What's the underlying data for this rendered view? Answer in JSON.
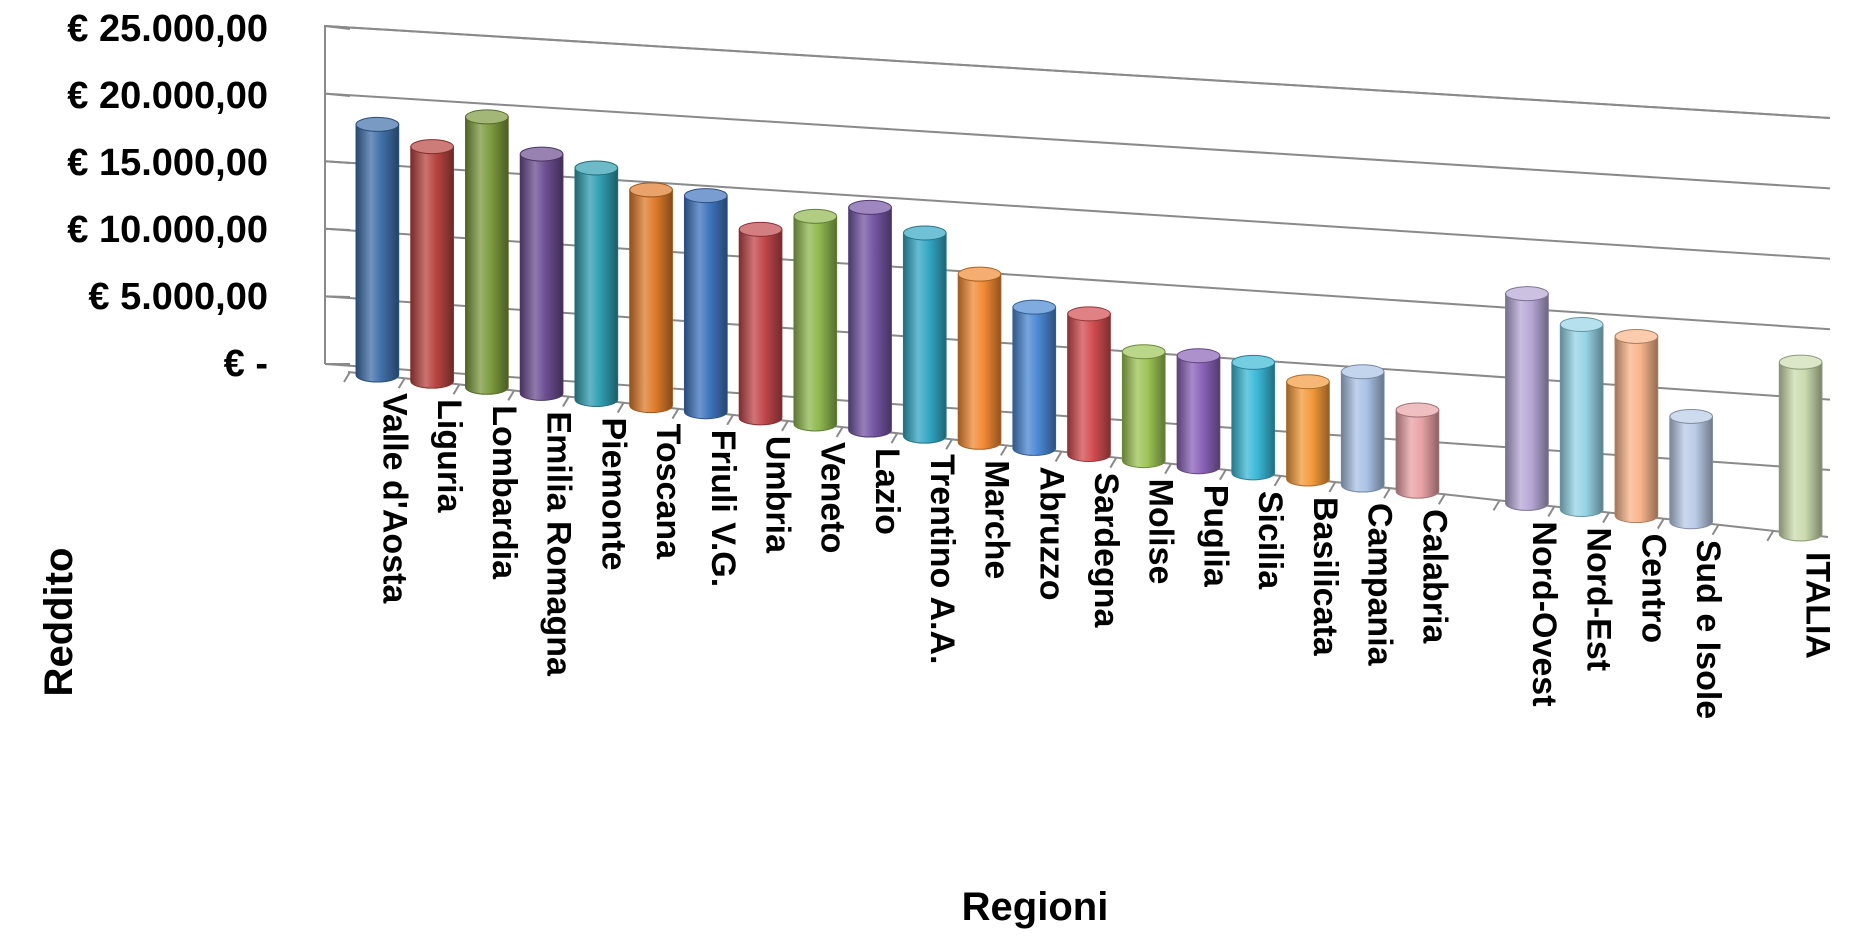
{
  "chart_data": {
    "type": "bar",
    "style": "3d-cylinder",
    "xlabel": "Regioni",
    "ylabel": "Reddito",
    "ylim": [
      0,
      25000
    ],
    "yticks": [
      {
        "value": 25000,
        "label": "€ 25.000,00"
      },
      {
        "value": 20000,
        "label": "€ 20.000,00"
      },
      {
        "value": 15000,
        "label": "€ 15.000,00"
      },
      {
        "value": 10000,
        "label": "€ 10.000,00"
      },
      {
        "value": 5000,
        "label": "€ 5.000,00"
      },
      {
        "value": 0,
        "label": "€ -"
      }
    ],
    "grid": true,
    "legend": "none",
    "categories": [
      "Valle d'Aosta",
      "Liguria",
      "Lombardia",
      "Emilia Romagna",
      "Piemonte",
      "Toscana",
      "Friuli V.G.",
      "Umbria",
      "Veneto",
      "Lazio",
      "Trentino A.A.",
      "Marche",
      "Abruzzo",
      "Sardegna",
      "Molise",
      "Puglia",
      "Sicilia",
      "Basilicata",
      "Campania",
      "Calabria",
      "",
      "Nord-Ovest",
      "Nord-Est",
      "Centro",
      "Sud e Isole",
      "",
      "ITALIA"
    ],
    "values": [
      18200,
      17100,
      19800,
      17600,
      17100,
      16000,
      16100,
      14100,
      15600,
      16800,
      15400,
      12800,
      10800,
      10800,
      8400,
      8600,
      8600,
      7600,
      8900,
      6400,
      null,
      16700,
      14800,
      14400,
      8500,
      null,
      14000
    ],
    "colors": [
      "#3f6fa8",
      "#b84440",
      "#7c9a3d",
      "#6b4d90",
      "#2f9db0",
      "#df7b2a",
      "#3f73bd",
      "#c0464a",
      "#8eb84e",
      "#7455a3",
      "#33a7c4",
      "#f28a34",
      "#4a87d3",
      "#d24c50",
      "#9cc455",
      "#8a62b8",
      "#3ab8d6",
      "#f39a3a",
      "#a9c2e5",
      "#e8a2a6",
      "#ffffff",
      "#b7a7d6",
      "#95d4e6",
      "#f8b48a",
      "#b9cbe8",
      "#ffffff",
      "#cbdcae"
    ]
  }
}
